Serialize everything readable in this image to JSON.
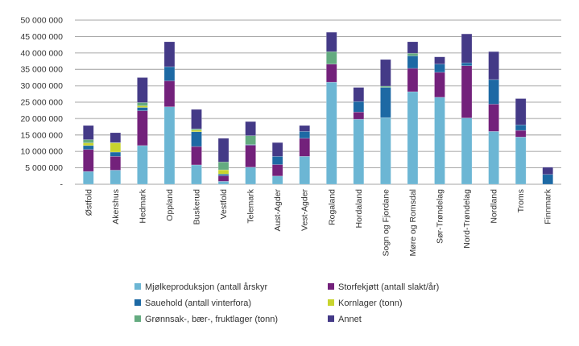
{
  "chart_data": {
    "type": "bar",
    "stacked": true,
    "title": "",
    "xlabel": "",
    "ylabel": "",
    "ylim": [
      0,
      50000000
    ],
    "yticks": [
      0,
      5000000,
      10000000,
      15000000,
      20000000,
      25000000,
      30000000,
      35000000,
      40000000,
      45000000,
      50000000
    ],
    "ytick_labels": [
      "-",
      "5 000 000",
      "10 000 000",
      "15 000 000",
      "20 000 000",
      "25 000 000",
      "30 000 000",
      "35 000 000",
      "40 000 000",
      "45 000 000",
      "50 000 000"
    ],
    "grid": true,
    "legend_position": "bottom",
    "categories": [
      "Østfold",
      "Akershus",
      "Hedmark",
      "Oppland",
      "Buskerud",
      "Vestfold",
      "Telemark",
      "Aust-Agder",
      "Vest-Agder",
      "Rogaland",
      "Hordaland",
      "Sogn og Fjordane",
      "Møre og Romsdal",
      "Sør-Trøndelag",
      "Nord-Trøndelag",
      "Nordland",
      "Troms",
      "Finnmark"
    ],
    "series": [
      {
        "name": "Mjølkeproduksjon (antall årskyr",
        "color": "#6cb6d4",
        "values": [
          3900000,
          4300000,
          11800000,
          23600000,
          5900000,
          900000,
          5200000,
          2500000,
          8500000,
          31100000,
          19800000,
          20300000,
          28200000,
          26500000,
          20200000,
          16100000,
          14400000,
          0
        ]
      },
      {
        "name": "Storfekjøtt (antall slakt/år)",
        "color": "#73217b",
        "values": [
          6700000,
          4200000,
          10600000,
          7900000,
          5600000,
          1700000,
          6700000,
          3500000,
          5500000,
          5500000,
          2200000,
          0,
          7100000,
          7600000,
          15900000,
          8300000,
          2000000,
          0
        ]
      },
      {
        "name": "Sauehold (antall vinterfora)",
        "color": "#1d69a4",
        "values": [
          1200000,
          1300000,
          1000000,
          4300000,
          4500000,
          500000,
          200000,
          2500000,
          2100000,
          0,
          3200000,
          9200000,
          3800000,
          2500000,
          900000,
          7500000,
          1700000,
          3000000
        ]
      },
      {
        "name": "Kornlager (tonn)",
        "color": "#c8d42e",
        "values": [
          800000,
          2800000,
          500000,
          0,
          500000,
          1300000,
          0,
          0,
          0,
          0,
          0,
          0,
          0,
          0,
          0,
          0,
          0,
          0
        ]
      },
      {
        "name": "Grønnsak-, bær-, fruktlager (tonn)",
        "color": "#64ab80",
        "values": [
          1000000,
          100000,
          1000000,
          0,
          400000,
          2400000,
          2700000,
          0,
          0,
          3800000,
          0,
          400000,
          800000,
          0,
          0,
          0,
          0,
          0
        ]
      },
      {
        "name": "Annet",
        "color": "#443a87",
        "values": [
          4300000,
          3000000,
          7600000,
          7600000,
          5900000,
          7200000,
          4300000,
          4200000,
          1800000,
          5900000,
          4300000,
          8100000,
          3500000,
          2200000,
          8800000,
          8500000,
          8000000,
          2200000
        ]
      }
    ]
  }
}
